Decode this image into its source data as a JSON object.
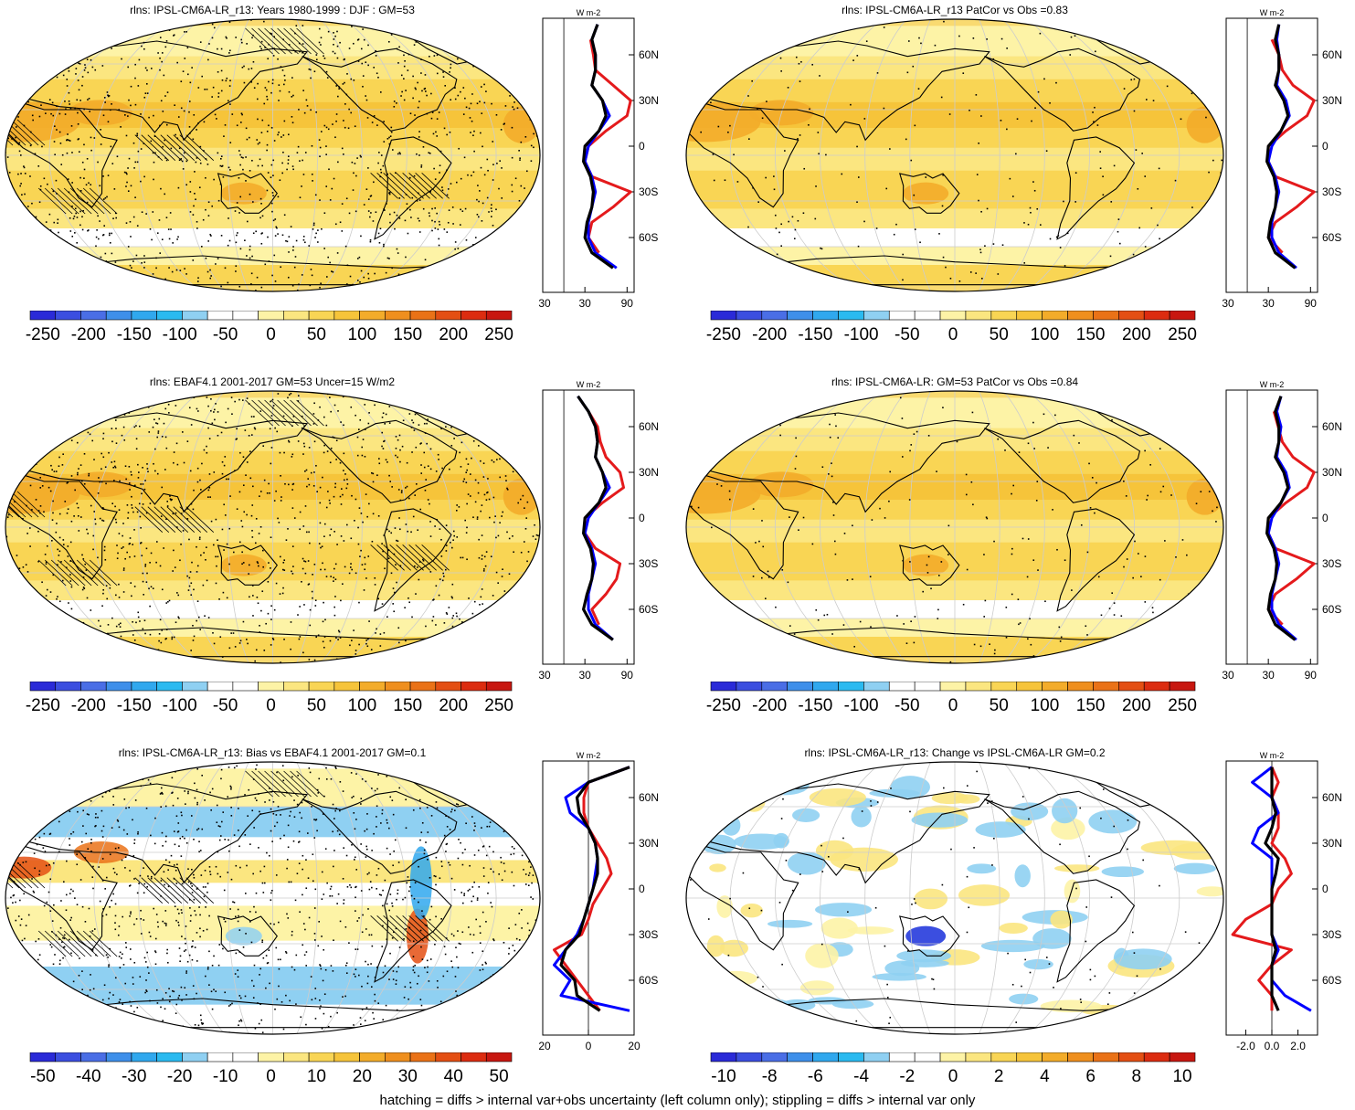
{
  "footer": "hatching = diffs > internal var+obs uncertainty (left column only); stippling = diffs > internal var only",
  "colors": {
    "ocean_base": "#f8dd76",
    "land_line": "#000000",
    "obs_line": "#e41a1c",
    "model_line": "#0000ff",
    "ens_line": "#000000"
  },
  "lat_tick_labels": [
    "60N",
    "30N",
    "0",
    "30S",
    "60S"
  ],
  "panels": [
    {
      "title": "rlns: IPSL-CM6A-LR_r13: Years 1980-1999 : DJF : GM=53",
      "map_style": "abs",
      "colorbar": {
        "labels": [
          "-250",
          "-200",
          "-150",
          "-100",
          "-50",
          "0",
          "50",
          "100",
          "150",
          "200",
          "250"
        ],
        "colors": [
          "#2a2ad8",
          "#3b4ee0",
          "#4a6ee6",
          "#3e8fea",
          "#30a8ee",
          "#2abaf0",
          "#8fd0f2",
          "#ffffff",
          "#ffffff",
          "#fdf3a6",
          "#fbe680",
          "#f9d554",
          "#f6c43a",
          "#f3ac2a",
          "#ef8f1e",
          "#ea7217",
          "#e44f13",
          "#dc2c10",
          "#c81710"
        ]
      },
      "profile": {
        "x_ticks": [
          "-30",
          "30",
          "90"
        ],
        "unit": "W m-2",
        "xlim": [
          -30,
          100
        ],
        "lat": [
          80,
          70,
          60,
          50,
          40,
          30,
          20,
          10,
          0,
          -10,
          -20,
          -30,
          -40,
          -50,
          -60,
          -70,
          -80
        ],
        "obs": [
          null,
          38,
          42,
          45,
          70,
          95,
          90,
          60,
          35,
          30,
          40,
          95,
          70,
          40,
          35,
          50,
          null
        ],
        "model": [
          48,
          40,
          45,
          45,
          40,
          55,
          65,
          50,
          35,
          30,
          40,
          45,
          40,
          35,
          35,
          45,
          75
        ],
        "ens": [
          48,
          40,
          45,
          45,
          40,
          55,
          60,
          50,
          30,
          28,
          38,
          42,
          40,
          33,
          30,
          40,
          70
        ]
      }
    },
    {
      "title": "rlns: IPSL-CM6A-LR_r13 PatCor vs Obs =0.83",
      "map_style": "abs",
      "colorbar": {
        "labels": [
          "-250",
          "-200",
          "-150",
          "-100",
          "-50",
          "0",
          "50",
          "100",
          "150",
          "200",
          "250"
        ],
        "colors": [
          "#2a2ad8",
          "#3b4ee0",
          "#4a6ee6",
          "#3e8fea",
          "#30a8ee",
          "#2abaf0",
          "#8fd0f2",
          "#ffffff",
          "#ffffff",
          "#fdf3a6",
          "#fbe680",
          "#f9d554",
          "#f6c43a",
          "#f3ac2a",
          "#ef8f1e",
          "#ea7217",
          "#e44f13",
          "#dc2c10",
          "#c81710"
        ]
      },
      "profile": {
        "x_ticks": [
          "-30",
          "30",
          "90"
        ],
        "unit": "W m-2",
        "xlim": [
          -30,
          100
        ],
        "lat": [
          80,
          70,
          60,
          50,
          40,
          30,
          20,
          10,
          0,
          -10,
          -20,
          -30,
          -40,
          -50,
          -60,
          -70,
          -80
        ],
        "obs": [
          null,
          35,
          45,
          50,
          65,
          95,
          85,
          55,
          30,
          30,
          40,
          95,
          70,
          40,
          30,
          50,
          null
        ],
        "model": [
          45,
          42,
          45,
          45,
          42,
          55,
          60,
          48,
          35,
          30,
          40,
          45,
          40,
          35,
          35,
          45,
          70
        ],
        "ens": [
          45,
          40,
          45,
          45,
          40,
          52,
          58,
          48,
          30,
          28,
          38,
          42,
          40,
          33,
          30,
          40,
          68
        ]
      }
    },
    {
      "title": "rlns: EBAF4.1 2001-2017 GM=53 Uncer=15 W/m2",
      "map_style": "abs",
      "colorbar": {
        "labels": [
          "-250",
          "-200",
          "-150",
          "-100",
          "-50",
          "0",
          "50",
          "100",
          "150",
          "200",
          "250"
        ],
        "colors": [
          "#2a2ad8",
          "#3b4ee0",
          "#4a6ee6",
          "#3e8fea",
          "#30a8ee",
          "#2abaf0",
          "#8fd0f2",
          "#ffffff",
          "#ffffff",
          "#fdf3a6",
          "#fbe680",
          "#f9d554",
          "#f6c43a",
          "#f3ac2a",
          "#ef8f1e",
          "#ea7217",
          "#e44f13",
          "#dc2c10",
          "#c81710"
        ]
      },
      "profile": {
        "x_ticks": [
          "-30",
          "30",
          "90"
        ],
        "unit": "W m-2",
        "xlim": [
          -30,
          100
        ],
        "lat": [
          80,
          70,
          60,
          50,
          40,
          30,
          20,
          10,
          0,
          -10,
          -20,
          -30,
          -40,
          -50,
          -60,
          -70,
          -80
        ],
        "obs": [
          null,
          35,
          48,
          52,
          60,
          80,
          85,
          55,
          30,
          30,
          45,
          80,
          75,
          60,
          40,
          50,
          null
        ],
        "model": [
          20,
          35,
          45,
          48,
          45,
          55,
          65,
          50,
          35,
          30,
          40,
          45,
          40,
          35,
          35,
          45,
          70
        ],
        "ens": [
          20,
          35,
          45,
          48,
          45,
          55,
          60,
          50,
          30,
          28,
          38,
          42,
          40,
          33,
          28,
          40,
          70
        ]
      }
    },
    {
      "title": "rlns: IPSL-CM6A-LR: GM=53 PatCor vs Obs =0.84",
      "map_style": "abs",
      "colorbar": {
        "labels": [
          "-250",
          "-200",
          "-150",
          "-100",
          "-50",
          "0",
          "50",
          "100",
          "150",
          "200",
          "250"
        ],
        "colors": [
          "#2a2ad8",
          "#3b4ee0",
          "#4a6ee6",
          "#3e8fea",
          "#30a8ee",
          "#2abaf0",
          "#8fd0f2",
          "#ffffff",
          "#ffffff",
          "#fdf3a6",
          "#fbe680",
          "#f9d554",
          "#f6c43a",
          "#f3ac2a",
          "#ef8f1e",
          "#ea7217",
          "#e44f13",
          "#dc2c10",
          "#c81710"
        ]
      },
      "profile": {
        "x_ticks": [
          "-30",
          "30",
          "90"
        ],
        "unit": "W m-2",
        "xlim": [
          -30,
          100
        ],
        "lat": [
          80,
          70,
          60,
          50,
          40,
          30,
          20,
          10,
          0,
          -10,
          -20,
          -30,
          -40,
          -50,
          -60,
          -70,
          -80
        ],
        "obs": [
          null,
          38,
          44,
          50,
          65,
          95,
          85,
          55,
          30,
          30,
          40,
          95,
          70,
          40,
          30,
          50,
          null
        ],
        "model": [
          48,
          42,
          48,
          45,
          42,
          55,
          60,
          48,
          35,
          30,
          40,
          45,
          40,
          35,
          35,
          45,
          70
        ],
        "ens": [
          48,
          40,
          45,
          45,
          40,
          52,
          58,
          48,
          30,
          28,
          38,
          42,
          40,
          33,
          30,
          40,
          68
        ]
      }
    },
    {
      "title": "rlns: IPSL-CM6A-LR_r13: Bias vs EBAF4.1 2001-2017 GM=0.1",
      "map_style": "bias",
      "colorbar": {
        "labels": [
          "-50",
          "-40",
          "-30",
          "-20",
          "-10",
          "0",
          "10",
          "20",
          "30",
          "40",
          "50"
        ],
        "colors": [
          "#2a2ad8",
          "#3b4ee0",
          "#4a6ee6",
          "#3e8fea",
          "#30a8ee",
          "#2abaf0",
          "#8fd0f2",
          "#ffffff",
          "#ffffff",
          "#fdf3a6",
          "#fbe680",
          "#f9d554",
          "#f6c43a",
          "#f3ac2a",
          "#ef8f1e",
          "#ea7217",
          "#e44f13",
          "#dc2c10",
          "#c81710"
        ]
      },
      "profile": {
        "x_ticks": [
          "-20",
          "0",
          "20"
        ],
        "unit": "W m-2",
        "xlim": [
          -20,
          20
        ],
        "lat": [
          80,
          70,
          60,
          50,
          40,
          30,
          20,
          10,
          0,
          -10,
          -20,
          -30,
          -40,
          -50,
          -60,
          -70,
          -80
        ],
        "obs": [
          18,
          0,
          -2,
          -2,
          0,
          4,
          8,
          10,
          6,
          2,
          0,
          -3,
          -15,
          -10,
          -5,
          0,
          5
        ],
        "model": [
          18,
          0,
          -10,
          -8,
          0,
          3,
          4,
          3,
          2,
          0,
          -2,
          -5,
          -10,
          -15,
          -8,
          -12,
          18
        ],
        "ens": [
          18,
          0,
          -5,
          -4,
          0,
          3,
          4,
          4,
          2,
          0,
          -2,
          -4,
          -10,
          -12,
          -6,
          -5,
          5
        ]
      }
    },
    {
      "title": "rlns: IPSL-CM6A-LR_r13: Change vs IPSL-CM6A-LR GM=0.2",
      "map_style": "change",
      "colorbar": {
        "labels": [
          "-10",
          "-8",
          "-6",
          "-4",
          "-2",
          "0",
          "2",
          "4",
          "6",
          "8",
          "10"
        ],
        "colors": [
          "#2a2ad8",
          "#3b4ee0",
          "#4a6ee6",
          "#3e8fea",
          "#30a8ee",
          "#2abaf0",
          "#8fd0f2",
          "#ffffff",
          "#ffffff",
          "#fdf3a6",
          "#fbe680",
          "#f9d554",
          "#f6c43a",
          "#f3ac2a",
          "#ef8f1e",
          "#ea7217",
          "#e44f13",
          "#dc2c10",
          "#c81710"
        ]
      },
      "profile": {
        "x_ticks": [
          "-2.0",
          "0.0",
          "2.0"
        ],
        "unit": "W m-2",
        "xlim": [
          -3.5,
          3.5
        ],
        "lat": [
          80,
          70,
          60,
          50,
          40,
          30,
          20,
          10,
          0,
          -10,
          -20,
          -30,
          -40,
          -50,
          -60,
          -70,
          -80
        ],
        "obs": [
          0,
          0.5,
          0,
          0.5,
          0.5,
          0,
          1,
          1.5,
          0.5,
          0,
          -2,
          -3,
          1.5,
          0,
          -1,
          0,
          0
        ],
        "model": [
          0,
          -1.5,
          0,
          0.5,
          -1,
          -1.5,
          0,
          0,
          0,
          0,
          0,
          0,
          0.5,
          0,
          0,
          1,
          3
        ],
        "ens": [
          0,
          0,
          0,
          0.3,
          0,
          -0.5,
          0.5,
          0.3,
          0,
          0,
          0,
          0,
          0.3,
          0,
          0,
          0,
          0.5
        ]
      }
    }
  ]
}
